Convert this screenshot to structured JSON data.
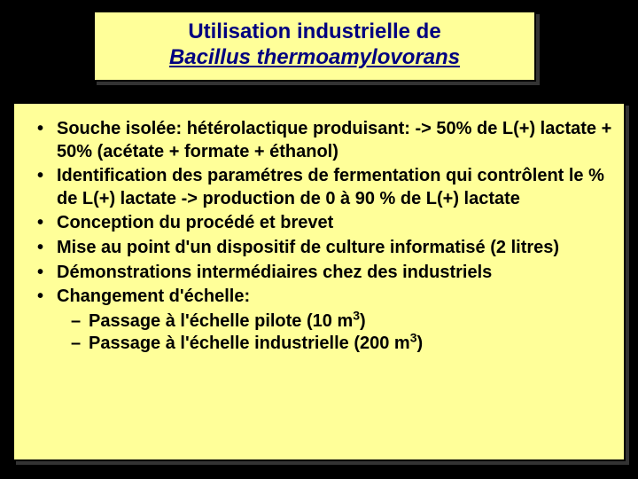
{
  "colors": {
    "page_bg": "#000000",
    "box_bg": "#ffff99",
    "box_border": "#000000",
    "title_text": "#000080",
    "body_text": "#000000",
    "shadow": "#333333"
  },
  "typography": {
    "font_family": "Comic Sans MS",
    "title_fontsize_pt": 24,
    "body_fontsize_pt": 20,
    "title_weight": "bold",
    "body_weight": "bold"
  },
  "title": {
    "line1": "Utilisation industrielle de",
    "line2_prefix": "",
    "line2_italic": "Bacillus thermoamylovorans"
  },
  "bullets": [
    {
      "text": "Souche isolée: hétérolactique  produisant: -> 50% de L(+) lactate + 50% (acétate + formate + éthanol)"
    },
    {
      "text": "Identification des paramétres de fermentation  qui contrôlent le % de L(+) lactate  -> production de 0 à 90 % de L(+) lactate"
    },
    {
      "text": "Conception du procédé et brevet"
    },
    {
      "text": "Mise au point d'un dispositif de culture informatisé (2 litres)"
    },
    {
      "text": "Démonstrations intermédiaires chez des industriels"
    },
    {
      "text": "Changement d'échelle:",
      "sub": [
        {
          "pre": "Passage à l'échelle pilote (10 m",
          "sup": "3",
          "post": ")"
        },
        {
          "pre": "Passage à l'échelle industrielle (200 m",
          "sup": "3",
          "post": ")"
        }
      ]
    }
  ]
}
